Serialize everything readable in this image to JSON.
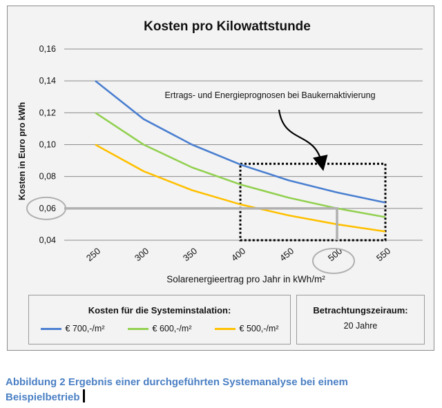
{
  "chart_data": {
    "type": "line",
    "title": "Kosten pro Kilowattstunde",
    "xlabel": "Solarenergieertrag pro Jahr in kWh/m²",
    "ylabel": "Kosten in Euro pro kWh",
    "x": [
      250,
      300,
      350,
      400,
      450,
      500,
      550
    ],
    "x_tick_labels": [
      "250",
      "300",
      "350",
      "400",
      "450",
      "500",
      "550"
    ],
    "y_tick_labels": [
      "0,04",
      "0,06",
      "0,08",
      "0,10",
      "0,12",
      "0,14",
      "0,16"
    ],
    "xlim": [
      250,
      550
    ],
    "ylim": [
      0.04,
      0.16
    ],
    "grid": true,
    "series": [
      {
        "name": "€ 700,-/m²",
        "color": "#4a7fd0",
        "values": [
          0.14,
          0.116,
          0.1,
          0.0875,
          0.0776,
          0.07,
          0.0636
        ]
      },
      {
        "name": "€ 600,-/m²",
        "color": "#92d050",
        "values": [
          0.12,
          0.1,
          0.0857,
          0.075,
          0.0667,
          0.06,
          0.0545
        ]
      },
      {
        "name": "€ 500,-/m²",
        "color": "#ffc000",
        "values": [
          0.1,
          0.0833,
          0.0714,
          0.0625,
          0.0556,
          0.05,
          0.0455
        ]
      }
    ],
    "annotation": {
      "text": "Ertrags- und Energieprognosen bei Baukernaktivierung",
      "highlight_x": [
        400,
        550
      ],
      "highlight_y": [
        0.04,
        0.088
      ]
    },
    "reference": {
      "x": 500,
      "y": 0.06,
      "x_label": "500",
      "y_label": "0,06"
    }
  },
  "legend": {
    "costs_title": "Kosten für die Systeminstalation:",
    "period_title": "Betrachtungszeiraum:",
    "period_value": "20 Jahre"
  },
  "caption": {
    "text": "Abbildung 2 Ergebnis einer durchgeführten  Systemanalyse bei einem Beispielbetrieb"
  }
}
